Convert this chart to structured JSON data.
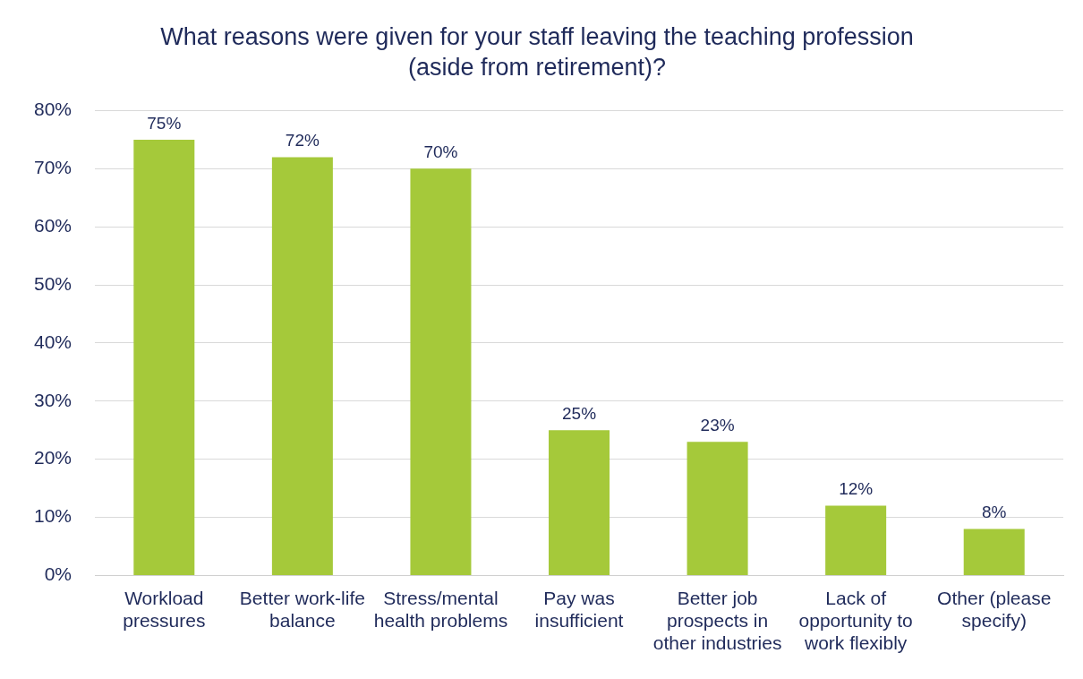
{
  "chart_data": {
    "type": "bar",
    "title": "What reasons were given for your staff leaving the teaching profession (aside from retirement)?",
    "categories": [
      "Workload pressures",
      "Better work-life balance",
      "Stress/mental health problems",
      "Pay was insufficient",
      "Better job prospects in other industries",
      "Lack of opportunity to work flexibly",
      "Other (please specify)"
    ],
    "values": [
      75,
      72,
      70,
      25,
      23,
      12,
      8
    ],
    "value_labels": [
      "75%",
      "72%",
      "70%",
      "25%",
      "23%",
      "12%",
      "8%"
    ],
    "color": "#a5c93a",
    "ylim": [
      0,
      80
    ],
    "yticks": [
      {
        "value": 0,
        "label": "0%"
      },
      {
        "value": 10,
        "label": "10%"
      },
      {
        "value": 20,
        "label": "20%"
      },
      {
        "value": 30,
        "label": "30%"
      },
      {
        "value": 40,
        "label": "40%"
      },
      {
        "value": 50,
        "label": "50%"
      },
      {
        "value": 60,
        "label": "60%"
      },
      {
        "value": 70,
        "label": "70%"
      },
      {
        "value": 80,
        "label": "80%"
      }
    ],
    "grid": "y",
    "legend": false
  }
}
